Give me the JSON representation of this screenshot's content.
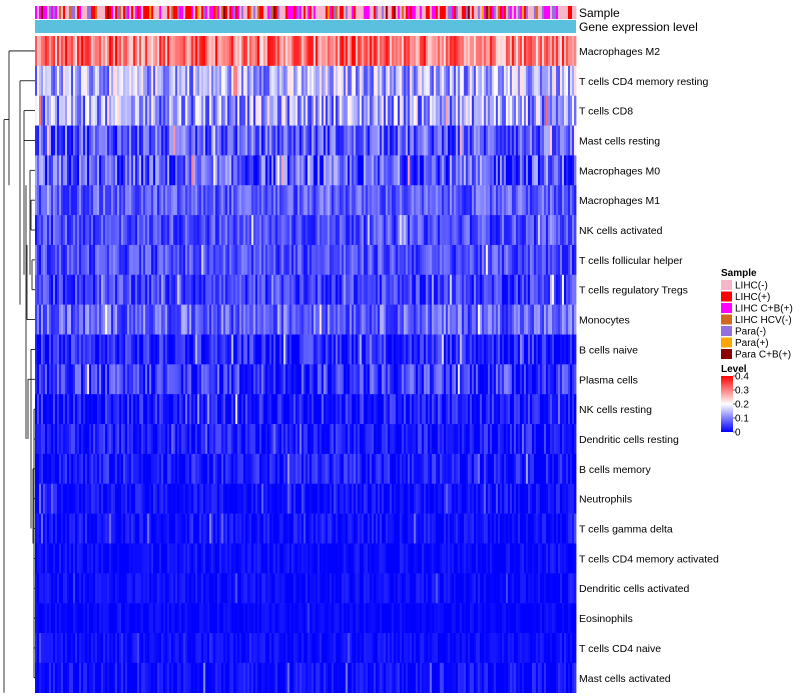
{
  "chart_data": {
    "type": "heatmap",
    "title": "",
    "xlabel": "",
    "ylabel": "",
    "annotations": [
      "Sample",
      "Gene expression level"
    ],
    "rows": [
      {
        "label": "Macrophages M2",
        "mean": 0.31,
        "spread": 0.09
      },
      {
        "label": "T cells CD4 memory resting",
        "mean": 0.14,
        "spread": 0.09
      },
      {
        "label": "T cells CD8",
        "mean": 0.13,
        "spread": 0.1
      },
      {
        "label": "Mast cells resting",
        "mean": 0.07,
        "spread": 0.07
      },
      {
        "label": "Macrophages M0",
        "mean": 0.06,
        "spread": 0.09
      },
      {
        "label": "Macrophages M1",
        "mean": 0.07,
        "spread": 0.05
      },
      {
        "label": "NK cells activated",
        "mean": 0.06,
        "spread": 0.05
      },
      {
        "label": "T cells follicular helper",
        "mean": 0.06,
        "spread": 0.05
      },
      {
        "label": "T cells regulatory  Tregs",
        "mean": 0.05,
        "spread": 0.05
      },
      {
        "label": "Monocytes",
        "mean": 0.08,
        "spread": 0.06
      },
      {
        "label": "B cells naive",
        "mean": 0.03,
        "spread": 0.05
      },
      {
        "label": "Plasma cells",
        "mean": 0.04,
        "spread": 0.07
      },
      {
        "label": "NK cells resting",
        "mean": 0.02,
        "spread": 0.05
      },
      {
        "label": "Dendritic cells resting",
        "mean": 0.02,
        "spread": 0.04
      },
      {
        "label": "B cells memory",
        "mean": 0.02,
        "spread": 0.04
      },
      {
        "label": "Neutrophils",
        "mean": 0.01,
        "spread": 0.03
      },
      {
        "label": "T cells gamma delta",
        "mean": 0.01,
        "spread": 0.03
      },
      {
        "label": "T cells CD4 memory activated",
        "mean": 0.01,
        "spread": 0.02
      },
      {
        "label": "Dendritic cells activated",
        "mean": 0.01,
        "spread": 0.02
      },
      {
        "label": "Eosinophils",
        "mean": 0.005,
        "spread": 0.015
      },
      {
        "label": "T cells CD4 naive",
        "mean": 0.01,
        "spread": 0.02
      },
      {
        "label": "Mast cells activated",
        "mean": 0.01,
        "spread": 0.03
      }
    ],
    "n_samples": 270,
    "color_scale": {
      "title": "Level",
      "ticks": [
        0.4,
        0.3,
        0.2,
        0.1,
        0
      ],
      "tick_labels": [
        "0.4",
        "0.3",
        "0.2",
        "0.1",
        "0"
      ],
      "domain": [
        0,
        0.4
      ],
      "colors": [
        "#0000ff",
        "#ffffff",
        "#ff0000"
      ]
    },
    "sample_legend": {
      "title": "Sample",
      "items": [
        {
          "label": "LIHC(-)",
          "color": "#f4b6c8"
        },
        {
          "label": "LIHC(+)",
          "color": "#ff0000"
        },
        {
          "label": "LIHC C+B(+)",
          "color": "#ff00ff"
        },
        {
          "label": "LIHC HCV(-)",
          "color": "#d2691e"
        },
        {
          "label": "Para(-)",
          "color": "#9370db"
        },
        {
          "label": "Para(+)",
          "color": "#ffa500"
        },
        {
          "label": "Para C+B(+)",
          "color": "#8b0000"
        }
      ]
    },
    "gene_expression_color": "#5bc0de",
    "legend_position": "right"
  }
}
